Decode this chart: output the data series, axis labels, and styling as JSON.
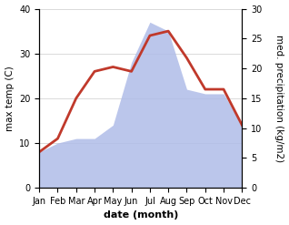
{
  "months": [
    "Jan",
    "Feb",
    "Mar",
    "Apr",
    "May",
    "Jun",
    "Jul",
    "Aug",
    "Sep",
    "Oct",
    "Nov",
    "Dec"
  ],
  "temp": [
    8,
    11,
    20,
    26,
    27,
    26,
    34,
    35,
    29,
    22,
    22,
    14
  ],
  "precip": [
    8,
    10,
    11,
    11,
    14,
    28,
    37,
    35,
    22,
    21,
    21,
    14
  ],
  "temp_color": "#c0392b",
  "precip_color": "#b0bce8",
  "temp_ylim": [
    0,
    40
  ],
  "precip_ylim": [
    0,
    30
  ],
  "xlabel": "date (month)",
  "ylabel_left": "max temp (C)",
  "ylabel_right": "med. precipitation (kg/m2)",
  "bg_color": "#ffffff",
  "plot_bg": "#ffffff",
  "temp_linewidth": 2.0,
  "xlabel_fontsize": 8,
  "ylabel_fontsize": 7.5,
  "tick_fontsize": 7
}
